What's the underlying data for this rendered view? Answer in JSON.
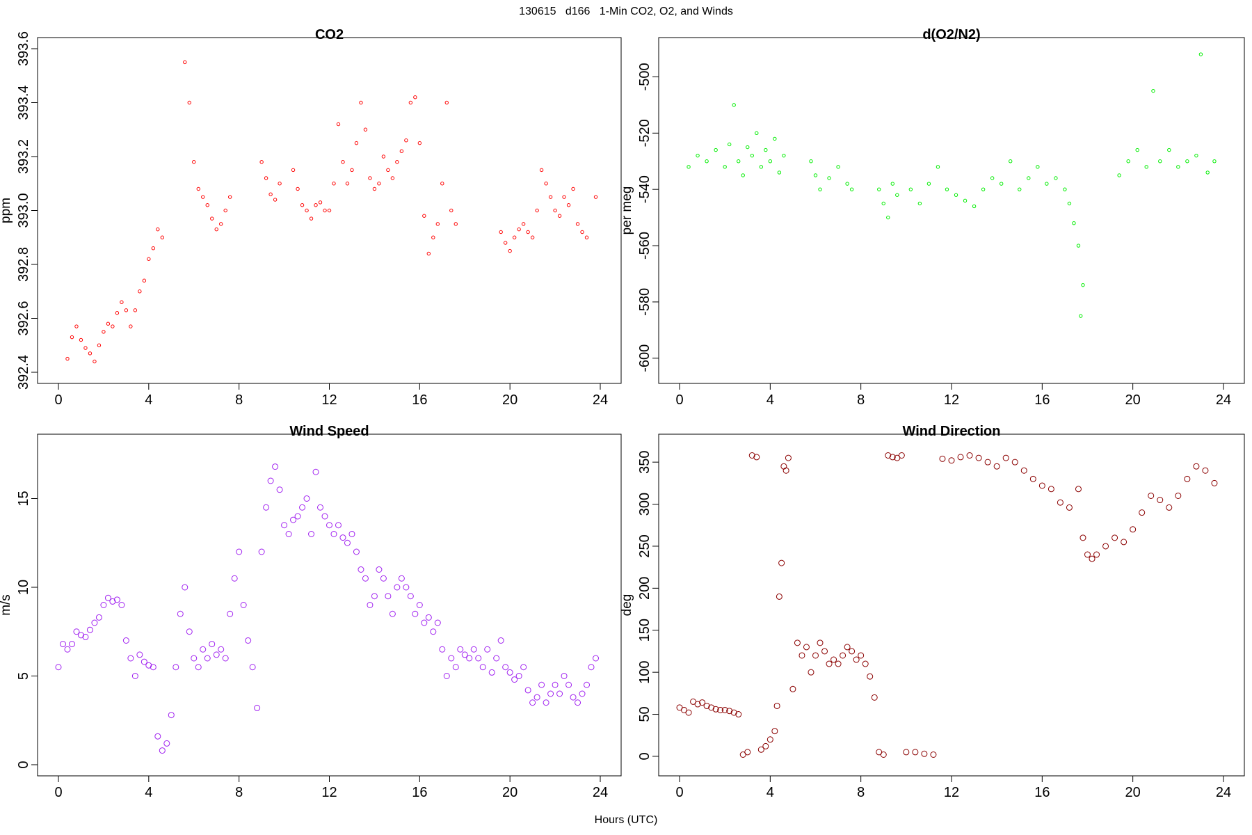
{
  "page": {
    "title": "130615   d166   1-Min CO2, O2, and Winds",
    "xlabel": "Hours (UTC)"
  },
  "chart_data": [
    {
      "id": "co2",
      "type": "scatter",
      "title": "CO2",
      "xlabel": "Hours (UTC)",
      "ylabel": "ppm",
      "xlim": [
        0,
        24
      ],
      "ylim": [
        392.4,
        393.6
      ],
      "xticks": [
        0,
        4,
        8,
        12,
        16,
        20,
        24
      ],
      "yticks": [
        392.4,
        392.6,
        392.8,
        393.0,
        393.2,
        393.4,
        393.6
      ],
      "ytick_labels": [
        "392.4",
        "392.6",
        "392.8",
        "393.0",
        "393.2",
        "393.4",
        "393.6"
      ],
      "color": "#ff0000",
      "grid": false,
      "series": [
        {
          "x": [
            0.4,
            0.6,
            0.8,
            1.0,
            1.2,
            1.4,
            1.6,
            1.8,
            2.0,
            2.2,
            2.4,
            2.6,
            2.8,
            3.0,
            3.2,
            3.4,
            3.6,
            3.8,
            4.0,
            4.2,
            4.4,
            4.6,
            5.6,
            5.8,
            6.0,
            6.2,
            6.4,
            6.6,
            6.8,
            7.0,
            7.2,
            7.4,
            7.6,
            9.0,
            9.2,
            9.4,
            9.6,
            9.8,
            10.4,
            10.6,
            10.8,
            11.0,
            11.2,
            11.4,
            11.6,
            11.8,
            12.0,
            12.2,
            12.4,
            12.6,
            12.8,
            13.0,
            13.2,
            13.4,
            13.6,
            13.8,
            14.0,
            14.2,
            14.4,
            14.6,
            14.8,
            15.0,
            15.2,
            15.4,
            15.6,
            15.8,
            16.0,
            16.2,
            16.4,
            16.6,
            16.8,
            17.0,
            17.2,
            17.4,
            17.6,
            19.6,
            19.8,
            20.0,
            20.2,
            20.4,
            20.6,
            20.8,
            21.0,
            21.2,
            21.4,
            21.6,
            21.8,
            22.0,
            22.2,
            22.4,
            22.6,
            22.8,
            23.0,
            23.2,
            23.4,
            23.8
          ],
          "y": [
            392.45,
            392.53,
            392.57,
            392.52,
            392.49,
            392.47,
            392.44,
            392.5,
            392.55,
            392.58,
            392.57,
            392.62,
            392.66,
            392.63,
            392.57,
            392.63,
            392.7,
            392.74,
            392.82,
            392.86,
            392.93,
            392.9,
            393.55,
            393.4,
            393.18,
            393.08,
            393.05,
            393.02,
            392.97,
            392.93,
            392.95,
            393.0,
            393.05,
            393.18,
            393.12,
            393.06,
            393.04,
            393.1,
            393.15,
            393.08,
            393.02,
            393.0,
            392.97,
            393.02,
            393.03,
            393.0,
            393.0,
            393.1,
            393.32,
            393.18,
            393.1,
            393.15,
            393.25,
            393.4,
            393.3,
            393.12,
            393.08,
            393.1,
            393.2,
            393.15,
            393.12,
            393.18,
            393.22,
            393.26,
            393.4,
            393.42,
            393.25,
            392.98,
            392.84,
            392.9,
            392.95,
            393.1,
            393.4,
            393.0,
            392.95,
            392.92,
            392.88,
            392.85,
            392.9,
            392.93,
            392.95,
            392.92,
            392.9,
            393.0,
            393.15,
            393.1,
            393.05,
            393.0,
            392.98,
            393.05,
            393.02,
            393.08,
            392.95,
            392.92,
            392.9,
            393.05
          ]
        }
      ]
    },
    {
      "id": "o2n2",
      "type": "scatter",
      "title": "d(O2/N2)",
      "xlabel": "Hours (UTC)",
      "ylabel": "per meg",
      "xlim": [
        0,
        24
      ],
      "ylim": [
        -605,
        -490
      ],
      "xticks": [
        0,
        4,
        8,
        12,
        16,
        20,
        24
      ],
      "yticks": [
        -600,
        -580,
        -560,
        -540,
        -520,
        -500
      ],
      "ytick_labels": [
        "-600",
        "-580",
        "-560",
        "-540",
        "-520",
        "-500"
      ],
      "color": "#00ee00",
      "grid": false,
      "series": [
        {
          "x": [
            0.4,
            0.8,
            1.2,
            1.6,
            2.0,
            2.2,
            2.4,
            2.6,
            2.8,
            3.0,
            3.2,
            3.4,
            3.6,
            3.8,
            4.0,
            4.2,
            4.4,
            4.6,
            5.8,
            6.0,
            6.2,
            6.6,
            7.0,
            7.4,
            7.6,
            8.8,
            9.0,
            9.2,
            9.4,
            9.6,
            10.2,
            10.6,
            11.0,
            11.4,
            11.8,
            12.2,
            12.6,
            13.0,
            13.4,
            13.8,
            14.2,
            14.6,
            15.0,
            15.4,
            15.8,
            16.2,
            16.6,
            17.0,
            17.2,
            17.4,
            17.6,
            17.7,
            17.8,
            19.4,
            19.8,
            20.2,
            20.6,
            20.9,
            21.2,
            21.6,
            22.0,
            22.4,
            22.8,
            23.0,
            23.3,
            23.6
          ],
          "y": [
            -532,
            -528,
            -530,
            -526,
            -532,
            -524,
            -510,
            -530,
            -535,
            -525,
            -528,
            -520,
            -532,
            -526,
            -530,
            -522,
            -534,
            -528,
            -530,
            -535,
            -540,
            -536,
            -532,
            -538,
            -540,
            -540,
            -545,
            -550,
            -538,
            -542,
            -540,
            -545,
            -538,
            -532,
            -540,
            -542,
            -544,
            -546,
            -540,
            -536,
            -538,
            -530,
            -540,
            -536,
            -532,
            -538,
            -536,
            -540,
            -545,
            -552,
            -560,
            -585,
            -574,
            -535,
            -530,
            -526,
            -532,
            -505,
            -530,
            -526,
            -532,
            -530,
            -528,
            -492,
            -534,
            -530
          ]
        }
      ]
    },
    {
      "id": "wspd",
      "type": "scatter",
      "title": "Wind Speed",
      "xlabel": "Hours (UTC)",
      "ylabel": "m/s",
      "xlim": [
        0,
        24
      ],
      "ylim": [
        0,
        18
      ],
      "xticks": [
        0,
        4,
        8,
        12,
        16,
        20,
        24
      ],
      "yticks": [
        0,
        5,
        10,
        15
      ],
      "ytick_labels": [
        "0",
        "5",
        "10",
        "15"
      ],
      "color": "#a020f0",
      "grid": false,
      "series": [
        {
          "x": [
            0.0,
            0.2,
            0.4,
            0.6,
            0.8,
            1.0,
            1.2,
            1.4,
            1.6,
            1.8,
            2.0,
            2.2,
            2.4,
            2.6,
            2.8,
            3.0,
            3.2,
            3.4,
            3.6,
            3.8,
            4.0,
            4.2,
            4.4,
            4.6,
            4.8,
            5.0,
            5.2,
            5.4,
            5.6,
            5.8,
            6.0,
            6.2,
            6.4,
            6.6,
            6.8,
            7.0,
            7.2,
            7.4,
            7.6,
            7.8,
            8.0,
            8.2,
            8.4,
            8.6,
            8.8,
            9.0,
            9.2,
            9.4,
            9.6,
            9.8,
            10.0,
            10.2,
            10.4,
            10.6,
            10.8,
            11.0,
            11.2,
            11.4,
            11.6,
            11.8,
            12.0,
            12.2,
            12.4,
            12.6,
            12.8,
            13.0,
            13.2,
            13.4,
            13.6,
            13.8,
            14.0,
            14.2,
            14.4,
            14.6,
            14.8,
            15.0,
            15.2,
            15.4,
            15.6,
            15.8,
            16.0,
            16.2,
            16.4,
            16.6,
            16.8,
            17.0,
            17.2,
            17.4,
            17.6,
            17.8,
            18.0,
            18.2,
            18.4,
            18.6,
            18.8,
            19.0,
            19.2,
            19.4,
            19.6,
            19.8,
            20.0,
            20.2,
            20.4,
            20.6,
            20.8,
            21.0,
            21.2,
            21.4,
            21.6,
            21.8,
            22.0,
            22.2,
            22.4,
            22.6,
            22.8,
            23.0,
            23.2,
            23.4,
            23.6,
            23.8
          ],
          "y": [
            5.5,
            6.8,
            6.5,
            6.8,
            7.5,
            7.3,
            7.2,
            7.6,
            8.0,
            8.3,
            9.0,
            9.4,
            9.2,
            9.3,
            9.0,
            7.0,
            6.0,
            5.0,
            6.2,
            5.8,
            5.6,
            5.5,
            1.6,
            0.8,
            1.2,
            2.8,
            5.5,
            8.5,
            10.0,
            7.5,
            6.0,
            5.5,
            6.5,
            6.0,
            6.8,
            6.2,
            6.5,
            6.0,
            8.5,
            10.5,
            12.0,
            9.0,
            7.0,
            5.5,
            3.2,
            12.0,
            14.5,
            16.0,
            16.8,
            15.5,
            13.5,
            13.0,
            13.8,
            14.0,
            14.5,
            15.0,
            13.0,
            16.5,
            14.5,
            14.0,
            13.5,
            13.0,
            13.5,
            12.8,
            12.5,
            13.0,
            12.0,
            11.0,
            10.5,
            9.0,
            9.5,
            11.0,
            10.5,
            9.5,
            8.5,
            10.0,
            10.5,
            10.0,
            9.5,
            8.5,
            9.0,
            8.0,
            8.3,
            7.5,
            8.0,
            6.5,
            5.0,
            6.0,
            5.5,
            6.5,
            6.2,
            6.0,
            6.5,
            6.0,
            5.5,
            6.5,
            5.2,
            6.0,
            7.0,
            5.5,
            5.2,
            4.8,
            5.0,
            5.5,
            4.2,
            3.5,
            3.8,
            4.5,
            3.5,
            4.0,
            4.5,
            4.0,
            5.0,
            4.5,
            3.8,
            3.5,
            4.0,
            4.5,
            5.5,
            6.0
          ]
        }
      ]
    },
    {
      "id": "wdir",
      "type": "scatter",
      "title": "Wind Direction",
      "xlabel": "Hours (UTC)",
      "ylabel": "deg",
      "xlim": [
        0,
        24
      ],
      "ylim": [
        -10,
        370
      ],
      "xticks": [
        0,
        4,
        8,
        12,
        16,
        20,
        24
      ],
      "yticks": [
        0,
        50,
        100,
        150,
        200,
        250,
        300,
        350
      ],
      "ytick_labels": [
        "0",
        "50",
        "100",
        "150",
        "200",
        "250",
        "300",
        "350"
      ],
      "color": "#8b0000",
      "grid": false,
      "series": [
        {
          "x": [
            0.0,
            0.2,
            0.4,
            0.6,
            0.8,
            1.0,
            1.2,
            1.4,
            1.6,
            1.8,
            2.0,
            2.2,
            2.4,
            2.6,
            2.8,
            3.0,
            3.2,
            3.4,
            3.6,
            3.8,
            4.0,
            4.2,
            4.3,
            4.4,
            4.5,
            4.6,
            4.7,
            4.8,
            5.0,
            5.2,
            5.4,
            5.6,
            5.8,
            6.0,
            6.2,
            6.4,
            6.6,
            6.8,
            7.0,
            7.2,
            7.4,
            7.6,
            7.8,
            8.0,
            8.2,
            8.4,
            8.6,
            8.8,
            9.0,
            9.2,
            9.4,
            9.6,
            9.8,
            10.0,
            10.4,
            10.8,
            11.2,
            11.6,
            12.0,
            12.4,
            12.8,
            13.2,
            13.6,
            14.0,
            14.4,
            14.8,
            15.2,
            15.6,
            16.0,
            16.4,
            16.8,
            17.2,
            17.6,
            17.8,
            18.0,
            18.2,
            18.4,
            18.8,
            19.2,
            19.6,
            20.0,
            20.4,
            20.8,
            21.2,
            21.6,
            22.0,
            22.4,
            22.8,
            23.2,
            23.6
          ],
          "y": [
            58,
            55,
            52,
            65,
            62,
            64,
            60,
            58,
            56,
            55,
            55,
            54,
            52,
            50,
            2,
            5,
            358,
            356,
            8,
            12,
            20,
            30,
            60,
            190,
            230,
            345,
            340,
            355,
            80,
            135,
            120,
            130,
            100,
            120,
            135,
            125,
            110,
            115,
            110,
            120,
            130,
            125,
            115,
            120,
            110,
            95,
            70,
            5,
            2,
            358,
            356,
            355,
            358,
            5,
            5,
            3,
            2,
            354,
            352,
            356,
            358,
            355,
            350,
            345,
            355,
            350,
            340,
            330,
            322,
            318,
            302,
            296,
            318,
            260,
            240,
            235,
            240,
            250,
            260,
            255,
            270,
            290,
            310,
            305,
            296,
            310,
            330,
            345,
            340,
            325
          ]
        }
      ]
    }
  ]
}
